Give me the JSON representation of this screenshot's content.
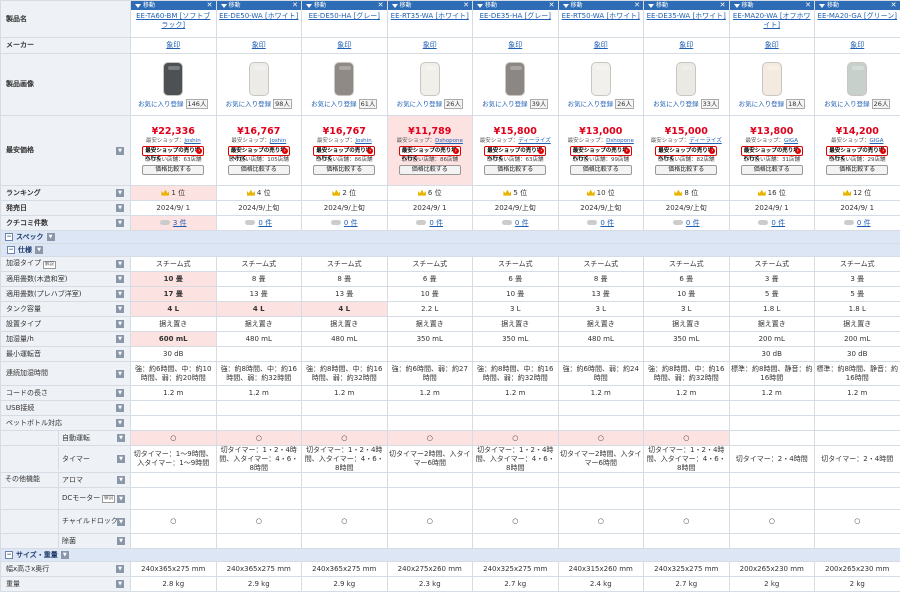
{
  "labels": {
    "name": "製品名",
    "maker": "メーカー",
    "image": "製品画像",
    "price": "最安価格",
    "rank": "ランキング",
    "date": "発売日",
    "review": "クチコミ件数",
    "spec": "スペック",
    "shiyo": "仕様",
    "type": "加湿タイプ",
    "tatami_w": "適用畳数(木造和室)",
    "tatami_p": "適用畳数(プレハブ洋室)",
    "tank": "タンク容量",
    "install": "設置タイプ",
    "amount": "加湿量/h",
    "noise": "最小運転音",
    "cont": "連続加湿時間",
    "cord": "コードの長さ",
    "usb": "USB接続",
    "pet": "ペットボトル対応",
    "other": "その他機能",
    "auto": "自動運転",
    "timer": "タイマー",
    "aroma": "アロマ",
    "dc": "DCモーター",
    "child": "チャイルドロック",
    "cleaning": "除菌",
    "size_sec": "サイズ・重量",
    "size": "幅x高さx奥行",
    "weight": "重量"
  },
  "tags": {
    "toggle": "▼",
    "note": "解説",
    "move": "移動",
    "close": "✕",
    "minus": "−",
    "go_arrow": "›"
  },
  "ui": {
    "fav": "お気に入り登録",
    "shop_prefix": "最安ショップ：",
    "go": "最安ショップの売り場へ行く",
    "cmp": "価格比較する",
    "maker_link": "象印",
    "handling_suffix": "店舗"
  },
  "products": [
    {
      "name": "EE-TA60-BM [ソフトブラック]",
      "color": "#4e5154",
      "favs": "146人",
      "price": "¥22,336",
      "shop": "Joshin",
      "handling": "取り扱い店舗：63店舗",
      "rank": "1 位",
      "date": "2024/9/ 1",
      "reviews": "3 件",
      "type": "スチーム式",
      "tw": "10 畳",
      "tp": "17 畳",
      "tank": "4 L",
      "inst": "据え置き",
      "amt": "600 mL",
      "noise": "30 dB",
      "cont": "強：約6時間、中：約10時間、弱：約20時間",
      "cord": "1.2 m",
      "usb": "",
      "pet": "",
      "auto": "○",
      "timer": "切タイマー：1〜9時間、入タイマー：1〜9時間",
      "aroma": "",
      "dc": "",
      "child": "○",
      "clean": "",
      "size": "240x365x275 mm",
      "weight": "2.8 kg"
    },
    {
      "name": "EE-DE50-WA [ホワイト]",
      "color": "#ecebe8",
      "favs": "98人",
      "price": "¥16,767",
      "shop": "Joshin",
      "handling": "取り扱い店舗：105店舗",
      "rank": "4 位",
      "date": "2024/9/上旬",
      "reviews": "0 件",
      "type": "スチーム式",
      "tw": "8 畳",
      "tp": "13 畳",
      "tank": "4 L",
      "inst": "据え置き",
      "amt": "480 mL",
      "noise": "",
      "cont": "強：約8時間、中：約16時間、弱：約32時間",
      "cord": "1.2 m",
      "usb": "",
      "pet": "",
      "auto": "○",
      "timer": "切タイマー：1・2・4時間、入タイマー：4・6・8時間",
      "aroma": "",
      "dc": "",
      "child": "○",
      "clean": "",
      "size": "240x365x275 mm",
      "weight": "2.9 kg"
    },
    {
      "name": "EE-DE50-HA [グレー]",
      "color": "#8f8a86",
      "favs": "61人",
      "price": "¥16,767",
      "shop": "Joshin",
      "handling": "取り扱い店舗：86店舗",
      "rank": "2 位",
      "date": "2024/9/上旬",
      "reviews": "0 件",
      "type": "スチーム式",
      "tw": "8 畳",
      "tp": "13 畳",
      "tank": "4 L",
      "inst": "据え置き",
      "amt": "480 mL",
      "noise": "",
      "cont": "強：約8時間、中：約16時間、弱：約32時間",
      "cord": "1.2 m",
      "usb": "",
      "pet": "",
      "auto": "○",
      "timer": "切タイマー：1・2・4時間、入タイマー：4・6・8時間",
      "aroma": "",
      "dc": "",
      "child": "○",
      "clean": "",
      "size": "240x365x275 mm",
      "weight": "2.9 kg"
    },
    {
      "name": "EE-RT35-WA [ホワイト]",
      "color": "#f1efe9",
      "favs": "26人",
      "price": "¥11,789",
      "shop": "Dshopone",
      "handling": "取り扱い店舗：86店舗",
      "rank": "6 位",
      "date": "2024/9/ 1",
      "reviews": "0 件",
      "type": "スチーム式",
      "tw": "6 畳",
      "tp": "10 畳",
      "tank": "2.2 L",
      "inst": "据え置き",
      "amt": "350 mL",
      "noise": "",
      "cont": "強：約6時間、弱：約27時間",
      "cord": "1.2 m",
      "usb": "",
      "pet": "",
      "auto": "○",
      "timer": "切タイマー2時間、入タイマー6時間",
      "aroma": "",
      "dc": "",
      "child": "○",
      "clean": "",
      "size": "240x275x260 mm",
      "weight": "2.3 kg"
    },
    {
      "name": "EE-DE35-HA [グレー]",
      "color": "#8b8784",
      "favs": "39人",
      "price": "¥15,800",
      "shop": "ディーライズ",
      "handling": "取り扱い店舗：63店舗",
      "rank": "5 位",
      "date": "2024/9/上旬",
      "reviews": "0 件",
      "type": "スチーム式",
      "tw": "6 畳",
      "tp": "10 畳",
      "tank": "3 L",
      "inst": "据え置き",
      "amt": "350 mL",
      "noise": "",
      "cont": "強：約8時間、中：約16時間、弱：約32時間",
      "cord": "1.2 m",
      "usb": "",
      "pet": "",
      "auto": "○",
      "timer": "切タイマー：1・2・4時間、入タイマー：4・6・8時間",
      "aroma": "",
      "dc": "",
      "child": "○",
      "clean": "",
      "size": "240x325x275 mm",
      "weight": "2.7 kg"
    },
    {
      "name": "EE-RT50-WA [ホワイト]",
      "color": "#f2f0ec",
      "favs": "26人",
      "price": "¥13,000",
      "shop": "Dshopone",
      "handling": "取り扱い店舗：99店舗",
      "rank": "10 位",
      "date": "2024/9/上旬",
      "reviews": "0 件",
      "type": "スチーム式",
      "tw": "8 畳",
      "tp": "13 畳",
      "tank": "3 L",
      "inst": "据え置き",
      "amt": "480 mL",
      "noise": "",
      "cont": "強：約6時間、弱：約24時間",
      "cord": "1.2 m",
      "usb": "",
      "pet": "",
      "auto": "○",
      "timer": "切タイマー2時間、入タイマー6時間",
      "aroma": "",
      "dc": "",
      "child": "○",
      "clean": "",
      "size": "240x315x260 mm",
      "weight": "2.4 kg"
    },
    {
      "name": "EE-DE35-WA [ホワイト]",
      "color": "#ebe9e4",
      "favs": "33人",
      "price": "¥15,000",
      "shop": "ディーライズ",
      "handling": "取り扱い店舗：82店舗",
      "rank": "8 位",
      "date": "2024/9/上旬",
      "reviews": "0 件",
      "type": "スチーム式",
      "tw": "6 畳",
      "tp": "10 畳",
      "tank": "3 L",
      "inst": "据え置き",
      "amt": "350 mL",
      "noise": "",
      "cont": "強：約8時間、中：約16時間、弱：約32時間",
      "cord": "1.2 m",
      "usb": "",
      "pet": "",
      "auto": "○",
      "timer": "切タイマー：1・2・4時間、入タイマー：4・6・8時間",
      "aroma": "",
      "dc": "",
      "child": "○",
      "clean": "",
      "size": "240x325x275 mm",
      "weight": "2.7 kg"
    },
    {
      "name": "EE-MA20-WA [オフホワイト]",
      "color": "#f3ebdf",
      "favs": "18人",
      "price": "¥13,800",
      "shop": "GIGA",
      "handling": "取り扱い店舗：31店舗",
      "rank": "16 位",
      "date": "2024/9/ 1",
      "reviews": "0 件",
      "type": "スチーム式",
      "tw": "3 畳",
      "tp": "5 畳",
      "tank": "1.8 L",
      "inst": "据え置き",
      "amt": "200 mL",
      "noise": "30 dB",
      "cont": "標準：約8時間、静音：約16時間",
      "cord": "1.2 m",
      "usb": "",
      "pet": "",
      "auto": "",
      "timer": "切タイマー：2・4時間",
      "aroma": "",
      "dc": "",
      "child": "○",
      "clean": "",
      "size": "200x265x230 mm",
      "weight": "2 kg"
    },
    {
      "name": "EE-MA20-GA [グリーン]",
      "color": "#c8d0cc",
      "favs": "26人",
      "price": "¥14,200",
      "shop": "GIGA",
      "handling": "取り扱い店舗：29店舗",
      "rank": "12 位",
      "date": "2024/9/ 1",
      "reviews": "0 件",
      "type": "スチーム式",
      "tw": "3 畳",
      "tp": "5 畳",
      "tank": "1.8 L",
      "inst": "据え置き",
      "amt": "200 mL",
      "noise": "30 dB",
      "cont": "標準：約8時間、静音：約16時間",
      "cord": "1.2 m",
      "usb": "",
      "pet": "",
      "auto": "",
      "timer": "切タイマー：2・4時間",
      "aroma": "",
      "dc": "",
      "child": "○",
      "clean": "",
      "size": "200x265x230 mm",
      "weight": "2 kg"
    }
  ]
}
